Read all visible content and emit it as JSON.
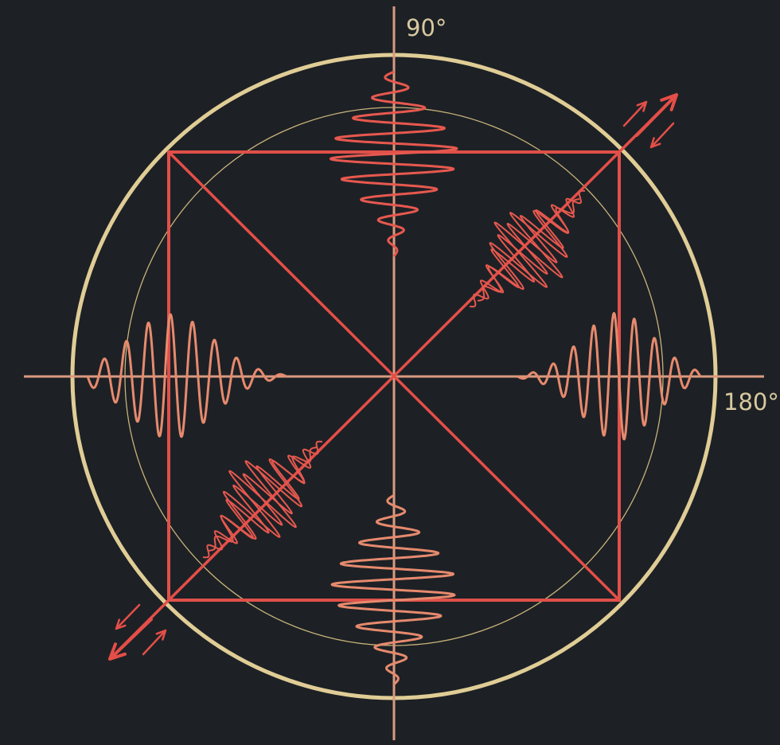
{
  "labels": {
    "top": "90°",
    "right": "180°"
  },
  "colors": {
    "background": "#1d2125",
    "outer_circle": "#e0cd96",
    "inner_circle": "#c8b27a",
    "square": "#e0504a",
    "diagonal": "#e54e48",
    "wave_red": "#e7584f",
    "wave_salmon": "#e68a6e",
    "axis": "#d99a80"
  }
}
